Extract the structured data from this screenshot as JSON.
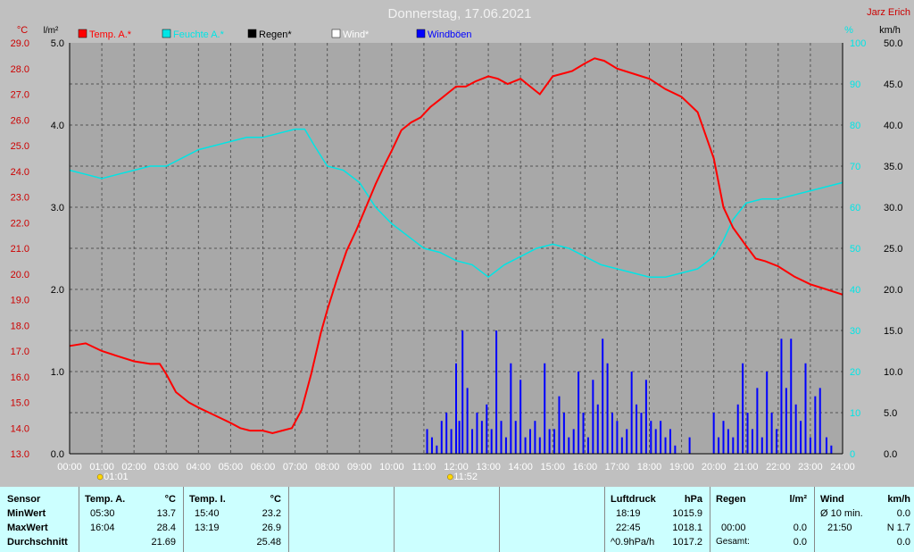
{
  "header": {
    "title": "Donnerstag, 17.06.2021",
    "author": "Jarz Erich",
    "unit_temp": "°C",
    "unit_rain": "l/m²",
    "unit_hum": "%",
    "unit_wind": "km/h"
  },
  "legend": [
    {
      "label": "Temp. A.*",
      "color": "#ff0000"
    },
    {
      "label": "Feuchte A.*",
      "color": "#00e5e5"
    },
    {
      "label": "Regen*",
      "color": "#000000"
    },
    {
      "label": "Wind*",
      "color": "#ffffff"
    },
    {
      "label": "Windböen",
      "color": "#0000ff"
    }
  ],
  "sun_markers": {
    "sunrise": "01:01",
    "sunset": "11:52"
  },
  "chart_data": {
    "type": "line",
    "x_ticks": [
      "00:00",
      "01:00",
      "02:00",
      "03:00",
      "04:00",
      "05:00",
      "06:00",
      "07:00",
      "08:00",
      "09:00",
      "10:00",
      "11:00",
      "12:00",
      "13:00",
      "14:00",
      "15:00",
      "16:00",
      "17:00",
      "18:00",
      "19:00",
      "20:00",
      "21:00",
      "22:00",
      "23:00",
      "24:00"
    ],
    "xlim_hours": [
      0,
      24
    ],
    "axes": {
      "temp": {
        "label": "°C",
        "ylim": [
          13.0,
          29.0
        ],
        "ticks": [
          "13.0",
          "14.0",
          "15.0",
          "16.0",
          "17.0",
          "18.0",
          "19.0",
          "20.0",
          "21.0",
          "22.0",
          "23.0",
          "24.0",
          "25.0",
          "26.0",
          "27.0",
          "28.0",
          "29.0"
        ]
      },
      "rain": {
        "label": "l/m²",
        "ylim": [
          0,
          5
        ],
        "ticks": [
          "0.0",
          "1.0",
          "2.0",
          "3.0",
          "4.0",
          "5.0"
        ]
      },
      "hum": {
        "label": "%",
        "ylim": [
          0,
          100
        ],
        "ticks": [
          "0",
          "10",
          "20",
          "30",
          "40",
          "50",
          "60",
          "70",
          "80",
          "90",
          "100"
        ]
      },
      "wind": {
        "label": "km/h",
        "ylim": [
          0,
          50
        ],
        "ticks": [
          "0.0",
          "5.0",
          "10.0",
          "15.0",
          "20.0",
          "25.0",
          "30.0",
          "35.0",
          "40.0",
          "45.0",
          "50.0"
        ]
      }
    },
    "grid": true,
    "series": [
      {
        "name": "Temp. A.*",
        "axis": "temp",
        "color": "#ff0000",
        "x": [
          0,
          0.5,
          1,
          1.5,
          2,
          2.5,
          2.8,
          3,
          3.3,
          3.7,
          4,
          4.5,
          5,
          5.3,
          5.6,
          6,
          6.3,
          6.6,
          6.9,
          7.2,
          7.5,
          7.8,
          8,
          8.3,
          8.6,
          8.9,
          9.2,
          9.5,
          9.8,
          10,
          10.3,
          10.6,
          10.9,
          11.2,
          11.5,
          11.8,
          12,
          12.3,
          12.6,
          13,
          13.3,
          13.6,
          14,
          14.3,
          14.6,
          15,
          15.3,
          15.6,
          16,
          16.3,
          16.6,
          17,
          17.5,
          18,
          18.5,
          19,
          19.5,
          20,
          20.3,
          20.6,
          21,
          21.3,
          21.6,
          22,
          22.5,
          23,
          23.5,
          24
        ],
        "values": [
          17.2,
          17.3,
          17.0,
          16.8,
          16.6,
          16.5,
          16.5,
          16.1,
          15.4,
          15.0,
          14.8,
          14.5,
          14.2,
          14.0,
          13.9,
          13.9,
          13.8,
          13.9,
          14.0,
          14.7,
          16.1,
          17.7,
          18.6,
          19.8,
          20.9,
          21.7,
          22.6,
          23.5,
          24.3,
          24.8,
          25.6,
          25.9,
          26.1,
          26.5,
          26.8,
          27.1,
          27.3,
          27.3,
          27.5,
          27.7,
          27.6,
          27.4,
          27.6,
          27.3,
          27.0,
          27.7,
          27.8,
          27.9,
          28.2,
          28.4,
          28.3,
          28.0,
          27.8,
          27.6,
          27.2,
          26.9,
          26.3,
          24.5,
          22.6,
          21.8,
          21.1,
          20.6,
          20.5,
          20.3,
          19.9,
          19.6,
          19.4,
          19.2
        ]
      },
      {
        "name": "Feuchte A.*",
        "axis": "hum",
        "color": "#00e5e5",
        "x": [
          0,
          0.5,
          1,
          1.5,
          2,
          2.5,
          3,
          3.5,
          4,
          5,
          5.5,
          6,
          6.5,
          7,
          7.3,
          7.6,
          8,
          8.5,
          9,
          9.5,
          10,
          10.5,
          11,
          11.5,
          12,
          12.5,
          13,
          13.5,
          14,
          14.5,
          15,
          15.5,
          16,
          16.5,
          17,
          17.5,
          18,
          18.5,
          19,
          19.5,
          20,
          20.3,
          20.6,
          21,
          21.5,
          22,
          22.5,
          23,
          23.5,
          24
        ],
        "values": [
          69,
          68,
          67,
          68,
          69,
          70,
          70,
          72,
          74,
          76,
          77,
          77,
          78,
          79,
          79,
          75,
          70,
          69,
          66,
          60,
          56,
          53,
          50,
          49,
          47,
          46,
          43,
          46,
          48,
          50,
          51,
          50,
          48,
          46,
          45,
          44,
          43,
          43,
          44,
          45,
          48,
          52,
          57,
          61,
          62,
          62,
          63,
          64,
          65,
          66
        ]
      },
      {
        "name": "Windböen",
        "axis": "wind",
        "color": "#0000ff",
        "type": "bar",
        "x": [
          11.1,
          11.25,
          11.4,
          11.55,
          11.7,
          11.85,
          12.0,
          12.1,
          12.2,
          12.35,
          12.5,
          12.65,
          12.8,
          12.95,
          13.1,
          13.25,
          13.4,
          13.55,
          13.7,
          13.85,
          14.0,
          14.15,
          14.3,
          14.45,
          14.6,
          14.75,
          14.9,
          15.05,
          15.2,
          15.35,
          15.5,
          15.65,
          15.8,
          15.95,
          16.1,
          16.25,
          16.4,
          16.55,
          16.7,
          16.85,
          17.0,
          17.15,
          17.3,
          17.45,
          17.6,
          17.75,
          17.9,
          18.05,
          18.2,
          18.35,
          18.5,
          18.65,
          18.8,
          19.25,
          20.0,
          20.15,
          20.3,
          20.45,
          20.6,
          20.75,
          20.9,
          21.05,
          21.2,
          21.35,
          21.5,
          21.65,
          21.8,
          21.95,
          22.1,
          22.25,
          22.4,
          22.55,
          22.7,
          22.85,
          23.0,
          23.15,
          23.3,
          23.5,
          23.65
        ],
        "values": [
          3,
          2,
          1,
          4,
          5,
          3,
          11,
          4,
          15,
          8,
          3,
          5,
          4,
          6,
          3,
          15,
          4,
          2,
          11,
          4,
          9,
          2,
          3,
          4,
          2,
          11,
          3,
          3,
          7,
          5,
          2,
          3,
          10,
          5,
          2,
          9,
          6,
          14,
          11,
          5,
          4,
          2,
          3,
          10,
          6,
          5,
          9,
          4,
          3,
          4,
          2,
          3,
          1,
          2,
          5,
          2,
          4,
          3,
          2,
          6,
          11,
          5,
          3,
          8,
          2,
          10,
          5,
          3,
          14,
          8,
          14,
          6,
          4,
          11,
          2,
          7,
          8,
          2,
          1
        ]
      }
    ]
  },
  "stats": {
    "sensor": {
      "header": "Sensor",
      "rows": [
        "MinWert",
        "MaxWert",
        "Durchschnitt"
      ]
    },
    "temp_a": {
      "header": "Temp. A.",
      "unit": "°C",
      "times": [
        "05:30",
        "16:04",
        ""
      ],
      "values": [
        "13.7",
        "28.4",
        "21.69"
      ]
    },
    "temp_i": {
      "header": "Temp. I.",
      "unit": "°C",
      "times": [
        "15:40",
        "13:19",
        ""
      ],
      "values": [
        "23.2",
        "26.9",
        "25.48"
      ]
    },
    "druck": {
      "header": "Luftdruck",
      "unit": "hPa",
      "times": [
        "18:19",
        "22:45",
        "^0.9hPa/h"
      ],
      "values": [
        "1015.9",
        "1018.1",
        "1017.2"
      ]
    },
    "regen": {
      "header": "Regen",
      "unit": "l/m²",
      "times": [
        "",
        "00:00",
        "Gesamt:"
      ],
      "values": [
        "",
        "0.0",
        "0.0"
      ]
    },
    "wind": {
      "header": "Wind",
      "unit": "km/h",
      "times": [
        "Ø 10 min.",
        "21:50",
        ""
      ],
      "values": [
        "0.0",
        "N 1.7",
        "0.0"
      ]
    }
  }
}
